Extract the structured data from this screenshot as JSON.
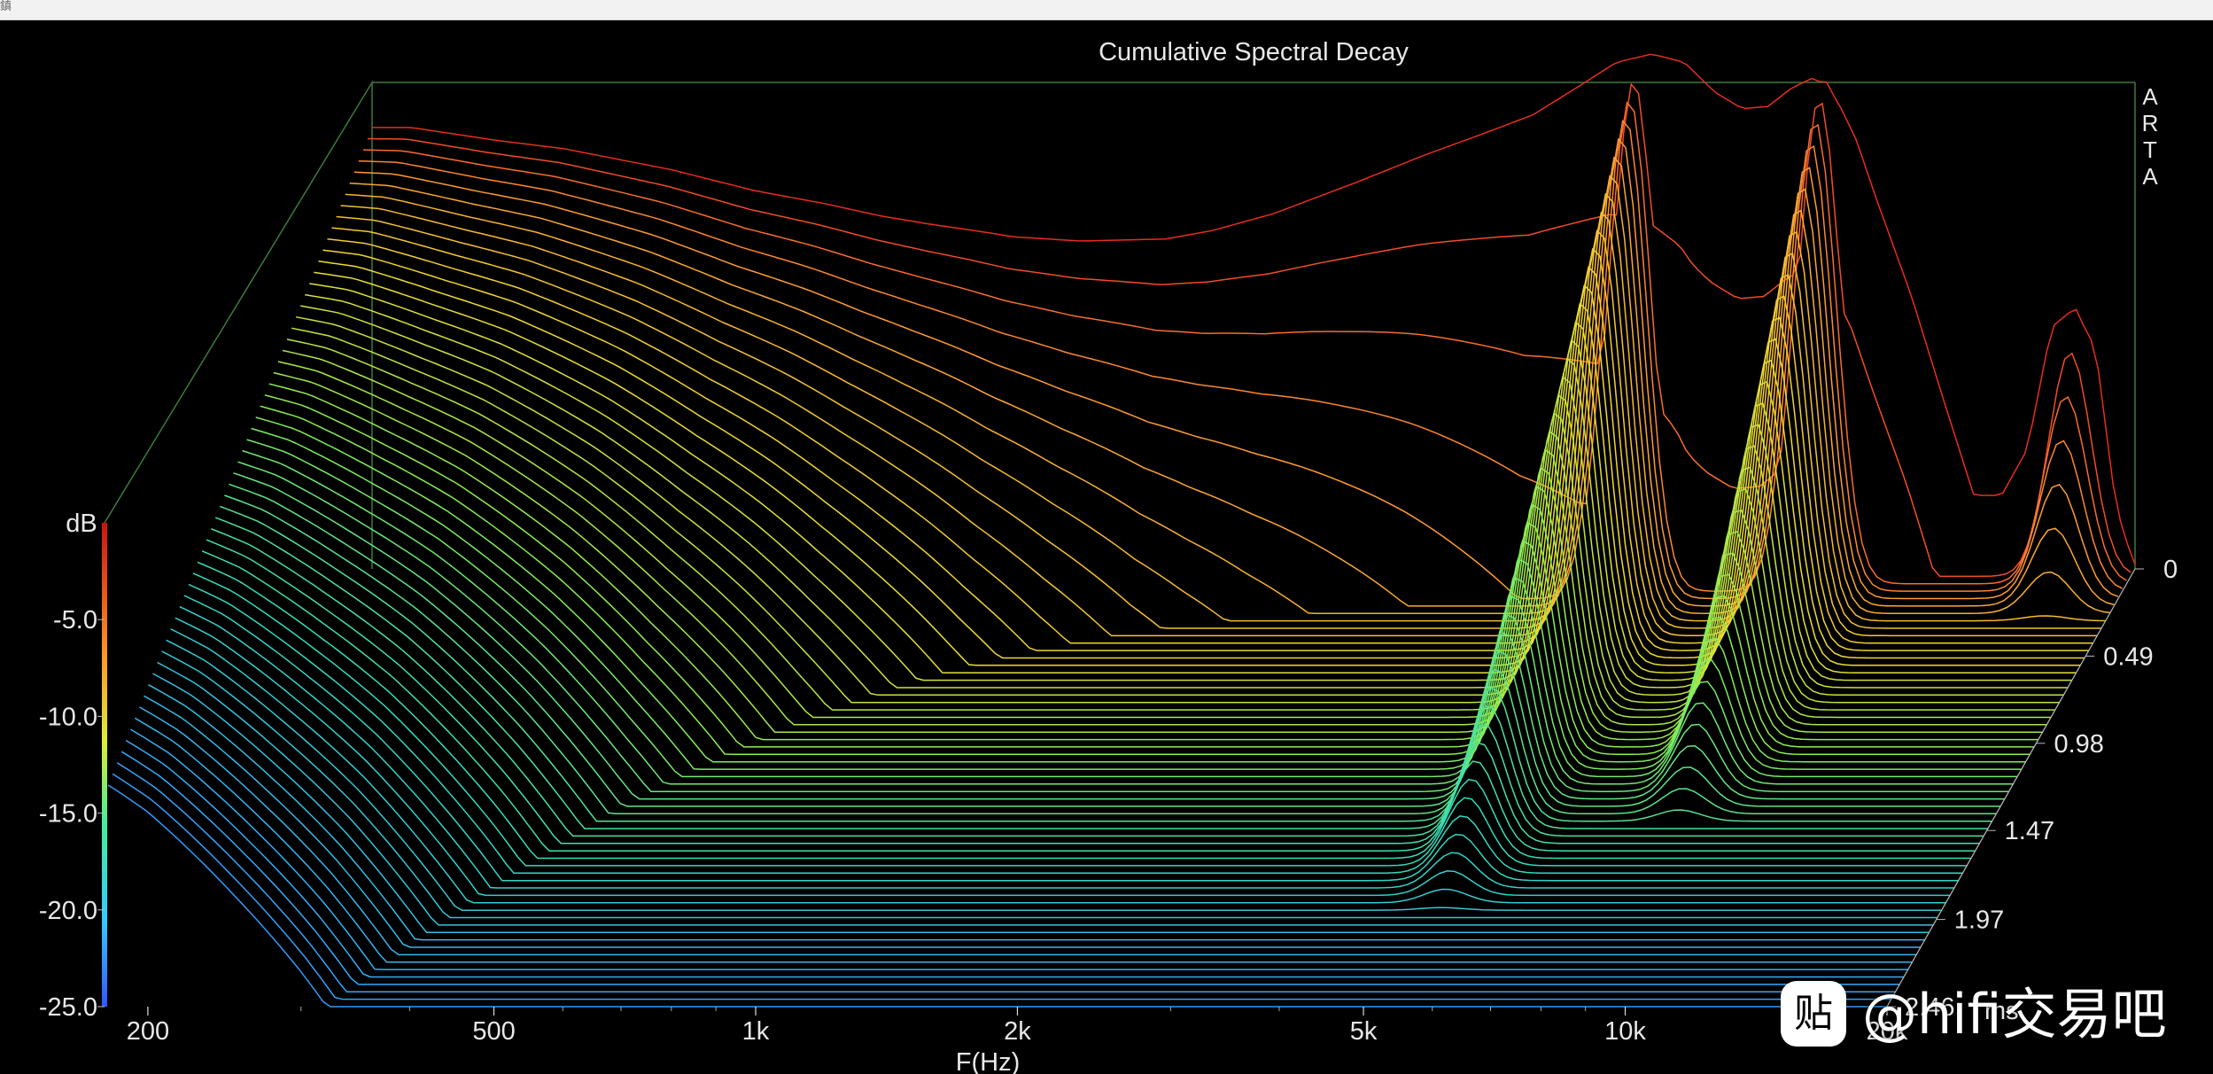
{
  "window": {
    "corner_glyph": "鎮"
  },
  "chart_data": {
    "type": "waterfall-3d",
    "title": "Cumulative Spectral Decay",
    "xlabel": "F(Hz)",
    "zlabel": "ms",
    "colorbar_label": "dB",
    "brand_label": [
      "A",
      "R",
      "T",
      "A"
    ],
    "x_scale": "log",
    "xlim": [
      180,
      20000
    ],
    "x_ticks": [
      {
        "value": 200,
        "label": "200"
      },
      {
        "value": 500,
        "label": "500"
      },
      {
        "value": 1000,
        "label": "1k"
      },
      {
        "value": 2000,
        "label": "2k"
      },
      {
        "value": 5000,
        "label": "5k"
      },
      {
        "value": 10000,
        "label": "10k"
      },
      {
        "value": 20000,
        "label": "20k"
      }
    ],
    "ylim": [
      -25,
      0
    ],
    "y_ticks": [
      {
        "value": -5,
        "label": "-5.0"
      },
      {
        "value": -10,
        "label": "-10.0"
      },
      {
        "value": -15,
        "label": "-15.0"
      },
      {
        "value": -20,
        "label": "-20.0"
      },
      {
        "value": -25,
        "label": "-25.0"
      }
    ],
    "time_ticks": [
      {
        "value": 0,
        "label": "0"
      },
      {
        "value": 0.49,
        "label": "0.49"
      },
      {
        "value": 0.98,
        "label": "0.98"
      },
      {
        "value": 1.47,
        "label": "1.47"
      },
      {
        "value": 1.97,
        "label": "1.97"
      },
      {
        "value": 2.46,
        "label": "2.46"
      }
    ],
    "tlim": [
      0,
      2.46
    ],
    "slice_count": 60,
    "grid": false,
    "colormap": [
      "#2244ee",
      "#33aaff",
      "#33ddbb",
      "#88ee55",
      "#eedd33",
      "#ff9933",
      "#ee3322",
      "#cc1111"
    ],
    "initial_response": {
      "freq": [
        200,
        250,
        300,
        400,
        500,
        600,
        700,
        800,
        900,
        1000,
        1200,
        1500,
        1700,
        2000,
        2500,
        3000,
        3500,
        4000,
        4500,
        5000,
        5500,
        6000,
        6500,
        7000,
        7500,
        8000,
        8500,
        9000,
        9500,
        10000,
        11000,
        12000,
        13000,
        14000,
        15000,
        16000,
        17000,
        18000,
        19000,
        20000
      ],
      "db": [
        -4,
        -4.6,
        -5,
        -6,
        -7,
        -7.6,
        -8.2,
        -8.6,
        -8.9,
        -9.2,
        -9.4,
        -9.3,
        -8.9,
        -8.1,
        -6.6,
        -5.3,
        -4.3,
        -3.4,
        -2.1,
        -0.9,
        -0.5,
        -0.9,
        -2.3,
        -3.1,
        -3,
        -2.1,
        -1.6,
        -2.6,
        -4.6,
        -7.3,
        -12,
        -17,
        -21.5,
        -21.5,
        -19.3,
        -13.5,
        -12.6,
        -14.5,
        -22,
        -25
      ]
    },
    "peaks": [
      {
        "freq": 5300,
        "db": -0.9,
        "decay_ms": 2.0
      },
      {
        "freq": 8700,
        "db": -1.6,
        "decay_ms": 1.55
      },
      {
        "freq": 17000,
        "db": -12.6,
        "decay_ms": 0.6
      }
    ]
  },
  "watermark": {
    "logo_glyph": "贴",
    "text": "@hifi交易吧"
  }
}
